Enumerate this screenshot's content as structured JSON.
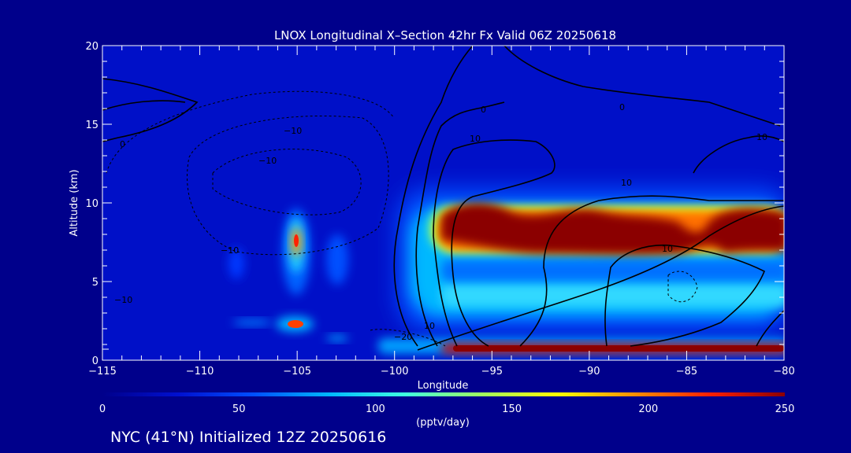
{
  "chart_data": {
    "type": "heatmap",
    "title": "LNOX Longitudinal X–Section 42hr  Fx Valid 06Z 20250618",
    "xlabel": "Longitude",
    "ylabel": "Altitude (km)",
    "xlim": [
      -115,
      -80
    ],
    "ylim": [
      0,
      20
    ],
    "x_ticks": [
      -115,
      -110,
      -105,
      -100,
      -95,
      -90,
      -85,
      -80
    ],
    "x_tick_labels": [
      "−115",
      "−110",
      "−105",
      "−100",
      "−95",
      "−90",
      "−85",
      "−80"
    ],
    "y_ticks": [
      0,
      5,
      10,
      15,
      20
    ],
    "y_tick_labels": [
      "0",
      "5",
      "10",
      "15",
      "20"
    ],
    "colorbar": {
      "label": "(pptv/day)",
      "min": 0,
      "max": 250,
      "ticks": [
        0,
        50,
        100,
        150,
        200,
        250
      ],
      "tick_labels": [
        "0",
        "50",
        "100",
        "150",
        "200",
        "250"
      ],
      "colors": [
        "#00008b",
        "#0010d0",
        "#0050ff",
        "#00b8ff",
        "#40ffe0",
        "#a0ff60",
        "#ffff00",
        "#ff9000",
        "#ff2000",
        "#8b0000"
      ]
    },
    "lnox_features": [
      {
        "lon_min": -106.0,
        "lon_max": -104.0,
        "alt_min": 3.5,
        "alt_max": 9.5,
        "peak": 200,
        "shape": "column"
      },
      {
        "lon_min": -103.8,
        "lon_max": -101.8,
        "alt_min": 5.0,
        "alt_max": 8.0,
        "peak": 55,
        "shape": "column"
      },
      {
        "lon_min": -109.0,
        "lon_max": -107.5,
        "alt_min": 5.5,
        "alt_max": 7.5,
        "peak": 30,
        "shape": "column"
      },
      {
        "lon_min": -106.5,
        "lon_max": -104.5,
        "alt_min": 1.5,
        "alt_max": 2.8,
        "peak": 230,
        "shape": "near-surface"
      },
      {
        "lon_min": -97.5,
        "lon_max": -80.0,
        "alt_min": 2.0,
        "alt_max": 11.0,
        "peak": 250,
        "shape": "anvil",
        "core_alt": [
          6.5,
          9.0
        ]
      },
      {
        "lon_min": -98.5,
        "lon_max": -80.0,
        "alt_min": 0.3,
        "alt_max": 1.2,
        "peak": 240,
        "shape": "boundary-layer"
      }
    ],
    "contour_labels": [
      "0",
      "0",
      "0",
      "−10",
      "−10",
      "−10",
      "−10",
      "10",
      "10",
      "10",
      "10",
      "10",
      "−20"
    ],
    "boundary_layer_marker_alt": 0.7
  },
  "footer": {
    "station": "NYC (41°N) Initialized 12Z 20250616"
  }
}
